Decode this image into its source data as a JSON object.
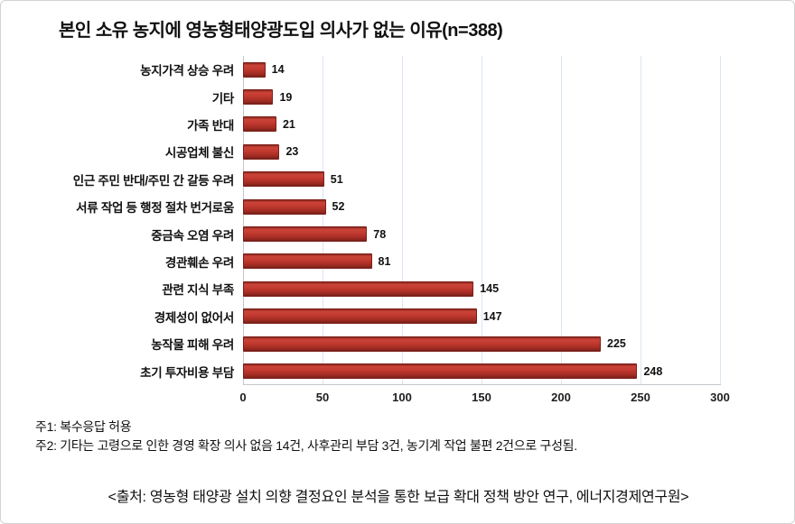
{
  "title": "본인 소유 농지에 영농형태양광도입 의사가 없는 이유(n=388)",
  "chart_data": {
    "type": "bar",
    "orientation": "horizontal",
    "title": "본인 소유 농지에 영농형태양광도입 의사가 없는 이유(n=388)",
    "categories": [
      "농지가격 상승 우려",
      "기타",
      "가족 반대",
      "시공업체 불신",
      "인근 주민 반대/주민 간 갈등 우려",
      "서류 작업 등 행정 절차 번거로움",
      "중금속 오염 우려",
      "경관훼손 우려",
      "관련 지식 부족",
      "경제성이 없어서",
      "농작물 피해 우려",
      "초기 투자비용 부담"
    ],
    "values": [
      14,
      19,
      21,
      23,
      51,
      52,
      78,
      81,
      145,
      147,
      225,
      248
    ],
    "xlabel": "",
    "ylabel": "",
    "xlim": [
      0,
      300
    ],
    "x_ticks": [
      0,
      50,
      100,
      150,
      200,
      250,
      300
    ],
    "grid": "vertical",
    "legend": "none",
    "bar_color": "#c23a30",
    "bar_border_color": "#7c201a",
    "gridline_color": "#dce6f1"
  },
  "notes": {
    "note1": "주1: 복수응답 허용",
    "note2": "주2: 기타는 고령으로 인한 경영 확장 의사 없음 14건, 사후관리 부담 3건, 농기계 작업 불편 2건으로 구성됨."
  },
  "source": "<출처: 영농형 태양광 설치 의향 결정요인 분석을 통한 보급 확대 정책 방안 연구, 에너지경제연구원>"
}
